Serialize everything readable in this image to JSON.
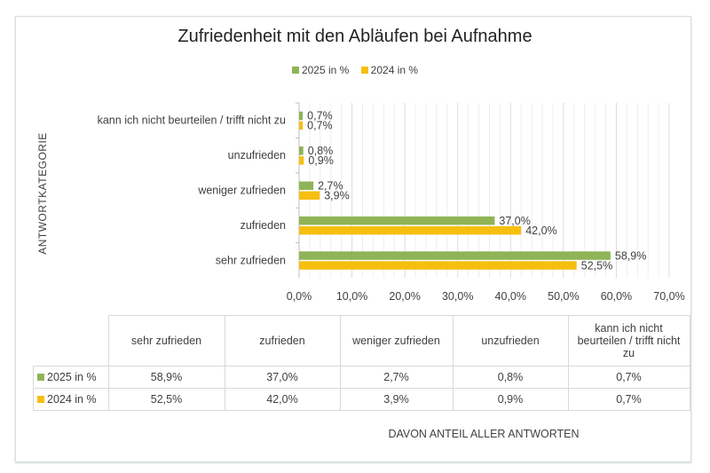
{
  "chart_data": {
    "type": "bar",
    "orientation": "horizontal",
    "title": "Zufriedenheit mit den Abläufen bei Aufnahme",
    "ylabel": "ANTWORTKATEGORIE",
    "xlabel": "DAVON ANTEIL ALLER ANTWORTEN",
    "categories": [
      "sehr zufrieden",
      "zufrieden",
      "weniger zufrieden",
      "unzufrieden",
      "kann ich nicht beurteilen / trifft nicht zu"
    ],
    "series": [
      {
        "name": "2025 in %",
        "color": "#8fb457",
        "values": [
          58.9,
          37.0,
          2.7,
          0.8,
          0.7
        ],
        "labels": [
          "58,9%",
          "37,0%",
          "2,7%",
          "0,8%",
          "0,7%"
        ]
      },
      {
        "name": "2024 in %",
        "color": "#f6bf10",
        "values": [
          52.5,
          42.0,
          3.9,
          0.9,
          0.7
        ],
        "labels": [
          "52,5%",
          "42,0%",
          "3,9%",
          "0,9%",
          "0,7%"
        ]
      }
    ],
    "xlim": [
      0,
      70
    ],
    "xticks": [
      "0,0%",
      "10,0%",
      "20,0%",
      "30,0%",
      "40,0%",
      "50,0%",
      "60,0%",
      "70,0%"
    ],
    "grid": true,
    "legend": "top",
    "data_table": {
      "headers": [
        "sehr zufrieden",
        "zufrieden",
        "weniger zufrieden",
        "unzufrieden",
        "kann ich nicht beurteilen / trifft nicht zu"
      ]
    }
  }
}
